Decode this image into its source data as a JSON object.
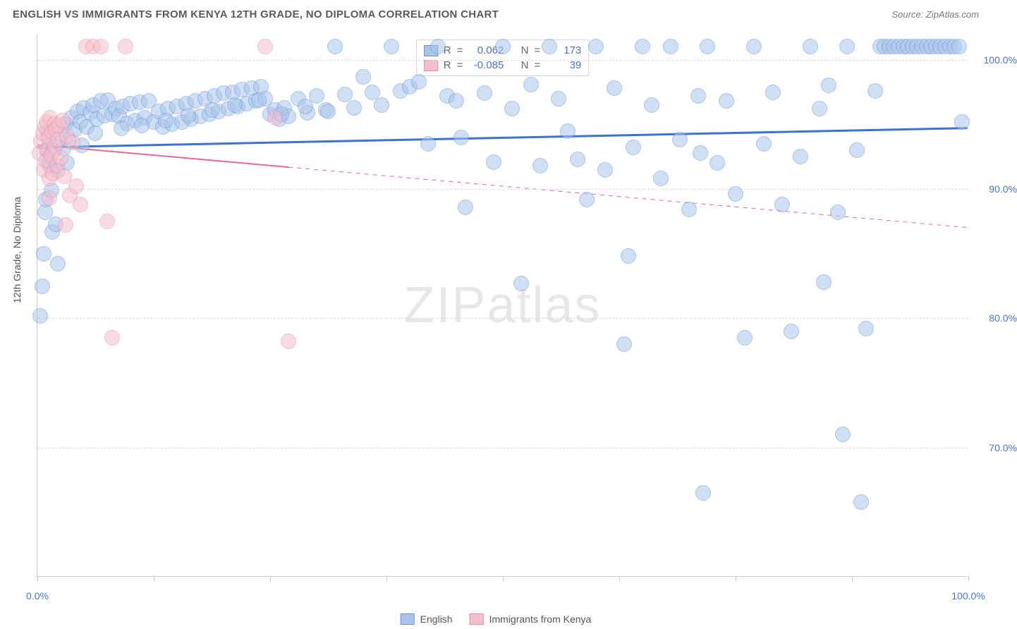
{
  "title": "ENGLISH VS IMMIGRANTS FROM KENYA 12TH GRADE, NO DIPLOMA CORRELATION CHART",
  "source_prefix": "Source: ",
  "source": "ZipAtlas.com",
  "ylabel": "12th Grade, No Diploma",
  "watermark": "ZIPatlas",
  "chart": {
    "type": "scatter",
    "xlim": [
      0,
      100
    ],
    "ylim": [
      60,
      102
    ],
    "xtick_positions": [
      0,
      12.5,
      25,
      37.5,
      50,
      62.5,
      75,
      87.5,
      100
    ],
    "xtick_labels": {
      "0": "0.0%",
      "100": "100.0%"
    },
    "ytick_positions": [
      70,
      80,
      90,
      100
    ],
    "ytick_labels": {
      "70": "70.0%",
      "80": "80.0%",
      "90": "90.0%",
      "100": "100.0%"
    },
    "grid_color": "#d8d8d8",
    "background_color": "#ffffff",
    "marker_radius": 11,
    "marker_opacity": 0.55,
    "series": [
      {
        "key": "english",
        "label": "English",
        "fill": "#a9c5ec",
        "stroke": "#6b93d6",
        "r_value": "0.062",
        "n_value": "173",
        "trend": {
          "x1": 0,
          "y1": 93.2,
          "x2": 100,
          "y2": 94.7,
          "solid_to_x": 100,
          "color": "#3d72d1",
          "width": 3
        },
        "points": [
          [
            0.3,
            80.2
          ],
          [
            0.5,
            82.5
          ],
          [
            0.7,
            85.0
          ],
          [
            0.8,
            88.2
          ],
          [
            0.9,
            89.2
          ],
          [
            1.0,
            93.0
          ],
          [
            1.1,
            94.5
          ],
          [
            1.2,
            92.1
          ],
          [
            1.3,
            93.5
          ],
          [
            1.4,
            91.8
          ],
          [
            1.6,
            86.7
          ],
          [
            1.8,
            93.0
          ],
          [
            2.0,
            87.3
          ],
          [
            2.2,
            91.4
          ],
          [
            2.5,
            94.2
          ],
          [
            2.8,
            93.1
          ],
          [
            3.0,
            95.0
          ],
          [
            3.3,
            93.8
          ],
          [
            3.6,
            95.5
          ],
          [
            4.0,
            94.6
          ],
          [
            4.3,
            96.0
          ],
          [
            4.6,
            95.2
          ],
          [
            5.0,
            96.3
          ],
          [
            5.3,
            94.8
          ],
          [
            5.7,
            95.9
          ],
          [
            6.0,
            96.5
          ],
          [
            6.4,
            95.4
          ],
          [
            6.8,
            96.8
          ],
          [
            7.2,
            95.7
          ],
          [
            7.6,
            96.9
          ],
          [
            8.0,
            95.8
          ],
          [
            8.4,
            96.2
          ],
          [
            8.8,
            95.6
          ],
          [
            9.2,
            96.4
          ],
          [
            9.6,
            95.1
          ],
          [
            10.0,
            96.6
          ],
          [
            10.5,
            95.3
          ],
          [
            11.0,
            96.7
          ],
          [
            11.5,
            95.5
          ],
          [
            12.0,
            96.8
          ],
          [
            12.5,
            95.2
          ],
          [
            13.0,
            96.0
          ],
          [
            13.5,
            94.8
          ],
          [
            14.0,
            96.2
          ],
          [
            14.5,
            95.0
          ],
          [
            15.0,
            96.4
          ],
          [
            15.5,
            95.2
          ],
          [
            16.0,
            96.6
          ],
          [
            16.5,
            95.4
          ],
          [
            17.0,
            96.8
          ],
          [
            17.5,
            95.6
          ],
          [
            18.0,
            97.0
          ],
          [
            18.5,
            95.8
          ],
          [
            19.0,
            97.2
          ],
          [
            19.5,
            96.0
          ],
          [
            20.0,
            97.4
          ],
          [
            20.5,
            96.2
          ],
          [
            21.0,
            97.5
          ],
          [
            21.5,
            96.4
          ],
          [
            22.0,
            97.7
          ],
          [
            22.5,
            96.6
          ],
          [
            23.0,
            97.8
          ],
          [
            23.5,
            96.8
          ],
          [
            24.0,
            97.9
          ],
          [
            24.5,
            97.0
          ],
          [
            25.0,
            95.8
          ],
          [
            25.5,
            96.1
          ],
          [
            26.0,
            95.4
          ],
          [
            26.5,
            96.3
          ],
          [
            27.0,
            95.6
          ],
          [
            28.0,
            97.0
          ],
          [
            29.0,
            95.9
          ],
          [
            30.0,
            97.2
          ],
          [
            31.0,
            96.1
          ],
          [
            32.0,
            101.0
          ],
          [
            33.0,
            97.3
          ],
          [
            34.0,
            96.3
          ],
          [
            35.0,
            98.7
          ],
          [
            36.0,
            97.5
          ],
          [
            37.0,
            96.5
          ],
          [
            38.0,
            101.0
          ],
          [
            39.0,
            97.6
          ],
          [
            40.0,
            97.9
          ],
          [
            41.0,
            98.3
          ],
          [
            42.0,
            93.5
          ],
          [
            43.0,
            101.0
          ],
          [
            44.0,
            97.2
          ],
          [
            45.0,
            96.8
          ],
          [
            46.0,
            88.6
          ],
          [
            48.0,
            97.4
          ],
          [
            49.0,
            92.1
          ],
          [
            50.0,
            101.0
          ],
          [
            51.0,
            96.2
          ],
          [
            52.0,
            82.7
          ],
          [
            53.0,
            98.1
          ],
          [
            54.0,
            91.8
          ],
          [
            55.0,
            101.0
          ],
          [
            56.0,
            97.0
          ],
          [
            57.0,
            94.5
          ],
          [
            58.0,
            92.3
          ],
          [
            59.0,
            89.2
          ],
          [
            60.0,
            101.0
          ],
          [
            61.0,
            91.5
          ],
          [
            62.0,
            97.8
          ],
          [
            63.0,
            78.0
          ],
          [
            64.0,
            93.2
          ],
          [
            65.0,
            101.0
          ],
          [
            66.0,
            96.5
          ],
          [
            67.0,
            90.8
          ],
          [
            68.0,
            101.0
          ],
          [
            69.0,
            93.8
          ],
          [
            70.0,
            88.4
          ],
          [
            71.0,
            97.2
          ],
          [
            71.5,
            66.5
          ],
          [
            72.0,
            101.0
          ],
          [
            73.0,
            92.0
          ],
          [
            74.0,
            96.8
          ],
          [
            75.0,
            89.6
          ],
          [
            76.0,
            78.5
          ],
          [
            77.0,
            101.0
          ],
          [
            78.0,
            93.5
          ],
          [
            79.0,
            97.5
          ],
          [
            80.0,
            88.8
          ],
          [
            81.0,
            79.0
          ],
          [
            82.0,
            92.5
          ],
          [
            83.0,
            101.0
          ],
          [
            84.0,
            96.2
          ],
          [
            85.0,
            98.0
          ],
          [
            86.0,
            88.2
          ],
          [
            86.5,
            71.0
          ],
          [
            87.0,
            101.0
          ],
          [
            88.0,
            93.0
          ],
          [
            88.5,
            65.8
          ],
          [
            89.0,
            79.2
          ],
          [
            90.0,
            97.6
          ],
          [
            90.5,
            101.0
          ],
          [
            91.0,
            101.0
          ],
          [
            91.5,
            101.0
          ],
          [
            92.0,
            101.0
          ],
          [
            92.5,
            101.0
          ],
          [
            93.0,
            101.0
          ],
          [
            93.5,
            101.0
          ],
          [
            94.0,
            101.0
          ],
          [
            94.5,
            101.0
          ],
          [
            95.0,
            101.0
          ],
          [
            95.5,
            101.0
          ],
          [
            96.0,
            101.0
          ],
          [
            96.5,
            101.0
          ],
          [
            97.0,
            101.0
          ],
          [
            97.5,
            101.0
          ],
          [
            98.0,
            101.0
          ],
          [
            98.5,
            101.0
          ],
          [
            99.0,
            101.0
          ],
          [
            99.3,
            95.2
          ],
          [
            2.2,
            84.2
          ],
          [
            1.5,
            89.9
          ],
          [
            3.2,
            92.0
          ],
          [
            4.8,
            93.4
          ],
          [
            6.2,
            94.3
          ],
          [
            9.0,
            94.7
          ],
          [
            11.2,
            94.9
          ],
          [
            13.8,
            95.3
          ],
          [
            16.2,
            95.7
          ],
          [
            18.8,
            96.1
          ],
          [
            21.2,
            96.5
          ],
          [
            23.8,
            96.9
          ],
          [
            26.2,
            95.8
          ],
          [
            28.8,
            96.4
          ],
          [
            31.2,
            96.0
          ],
          [
            45.5,
            94.0
          ],
          [
            63.5,
            84.8
          ],
          [
            71.2,
            92.8
          ],
          [
            84.5,
            82.8
          ]
        ]
      },
      {
        "key": "kenya",
        "label": "Immigrants from Kenya",
        "fill": "#f5bfcd",
        "stroke": "#e78fa8",
        "r_value": "-0.085",
        "n_value": "39",
        "trend": {
          "x1": 0,
          "y1": 93.4,
          "x2": 100,
          "y2": 87.0,
          "solid_to_x": 27,
          "color": "#e56b8e",
          "width": 2
        },
        "points": [
          [
            0.2,
            92.8
          ],
          [
            0.4,
            93.7
          ],
          [
            0.6,
            94.3
          ],
          [
            0.7,
            91.5
          ],
          [
            0.8,
            94.8
          ],
          [
            0.9,
            92.2
          ],
          [
            1.0,
            95.2
          ],
          [
            1.1,
            93.0
          ],
          [
            1.2,
            94.0
          ],
          [
            1.3,
            90.8
          ],
          [
            1.4,
            95.5
          ],
          [
            1.5,
            92.6
          ],
          [
            1.6,
            94.4
          ],
          [
            1.7,
            91.2
          ],
          [
            1.8,
            95.0
          ],
          [
            1.9,
            93.3
          ],
          [
            2.0,
            94.6
          ],
          [
            2.1,
            91.8
          ],
          [
            2.2,
            93.8
          ],
          [
            2.3,
            94.9
          ],
          [
            2.5,
            92.4
          ],
          [
            2.7,
            95.3
          ],
          [
            2.9,
            91.0
          ],
          [
            3.2,
            94.1
          ],
          [
            3.5,
            89.5
          ],
          [
            3.8,
            93.6
          ],
          [
            4.2,
            90.2
          ],
          [
            4.6,
            88.8
          ],
          [
            5.2,
            101.0
          ],
          [
            6.0,
            101.0
          ],
          [
            6.8,
            101.0
          ],
          [
            7.5,
            87.5
          ],
          [
            8.0,
            78.5
          ],
          [
            9.5,
            101.0
          ],
          [
            24.5,
            101.0
          ],
          [
            25.5,
            95.5
          ],
          [
            27.0,
            78.2
          ],
          [
            3.0,
            87.2
          ],
          [
            1.25,
            89.3
          ]
        ]
      }
    ]
  },
  "legend_top": {
    "r_label": "R",
    "n_label": "N",
    "eq": "="
  },
  "legend_bottom": {}
}
